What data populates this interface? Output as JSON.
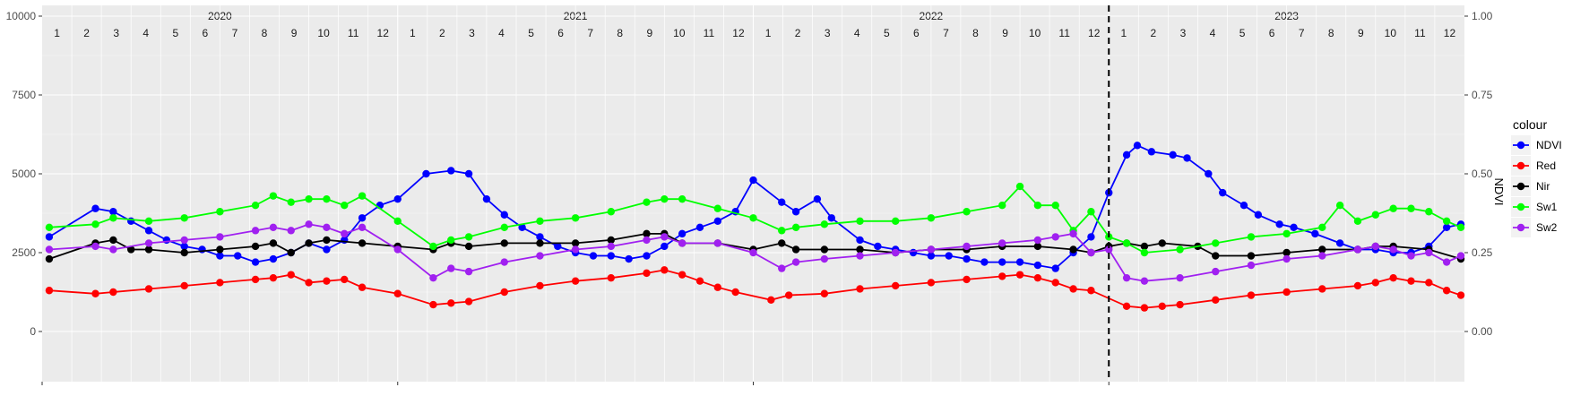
{
  "chart_data": {
    "type": "line",
    "title": "",
    "xlabel": "",
    "ylabel": "",
    "y2label": "NDVI",
    "ylim": [
      0,
      10000
    ],
    "y2lim": [
      0,
      1
    ],
    "y_ticks": [
      0,
      2500,
      5000,
      7500,
      10000
    ],
    "y_tick_labels": [
      "0",
      "2500",
      "5000",
      "7500",
      "10000"
    ],
    "y2_ticks": [
      0,
      0.25,
      0.5,
      0.75,
      1
    ],
    "y2_tick_labels": [
      "0.00",
      "0.25",
      "0.50",
      "0.75",
      "1.00"
    ],
    "years": [
      "2020",
      "2021",
      "2022",
      "2023"
    ],
    "month_labels": [
      "1",
      "2",
      "3",
      "4",
      "5",
      "6",
      "7",
      "8",
      "9",
      "10",
      "11",
      "12"
    ],
    "vline_date": "2023-01-01",
    "grid": true,
    "legend": {
      "title": "colour",
      "position": "right"
    },
    "x_unit": "decimal year",
    "series": [
      {
        "name": "NDVI",
        "color": "#0000ff",
        "axis": "secondary",
        "x": [
          2020.02,
          2020.15,
          2020.2,
          2020.25,
          2020.3,
          2020.35,
          2020.4,
          2020.45,
          2020.5,
          2020.55,
          2020.6,
          2020.65,
          2020.7,
          2020.75,
          2020.8,
          2020.85,
          2020.9,
          2020.95,
          2021.0,
          2021.08,
          2021.15,
          2021.2,
          2021.25,
          2021.3,
          2021.35,
          2021.4,
          2021.45,
          2021.5,
          2021.55,
          2021.6,
          2021.65,
          2021.7,
          2021.75,
          2021.8,
          2021.85,
          2021.9,
          2021.95,
          2022.0,
          2022.08,
          2022.12,
          2022.18,
          2022.22,
          2022.3,
          2022.35,
          2022.4,
          2022.45,
          2022.5,
          2022.55,
          2022.6,
          2022.65,
          2022.7,
          2022.75,
          2022.8,
          2022.85,
          2022.9,
          2022.95,
          2023.0,
          2023.05,
          2023.08,
          2023.12,
          2023.18,
          2023.22,
          2023.28,
          2023.32,
          2023.38,
          2023.42,
          2023.48,
          2023.52,
          2023.58,
          2023.65,
          2023.7,
          2023.75,
          2023.8,
          2023.85,
          2023.9,
          2023.95,
          2023.99
        ],
        "y": [
          0.3,
          0.39,
          0.38,
          0.35,
          0.32,
          0.29,
          0.27,
          0.26,
          0.24,
          0.24,
          0.22,
          0.23,
          0.25,
          0.28,
          0.26,
          0.29,
          0.36,
          0.4,
          0.42,
          0.5,
          0.51,
          0.5,
          0.42,
          0.37,
          0.33,
          0.3,
          0.27,
          0.25,
          0.24,
          0.24,
          0.23,
          0.24,
          0.27,
          0.31,
          0.33,
          0.35,
          0.38,
          0.48,
          0.41,
          0.38,
          0.42,
          0.36,
          0.29,
          0.27,
          0.26,
          0.25,
          0.24,
          0.24,
          0.23,
          0.22,
          0.22,
          0.22,
          0.21,
          0.2,
          0.25,
          0.3,
          0.44,
          0.56,
          0.59,
          0.57,
          0.56,
          0.55,
          0.5,
          0.44,
          0.4,
          0.37,
          0.34,
          0.33,
          0.31,
          0.28,
          0.26,
          0.26,
          0.25,
          0.25,
          0.27,
          0.33,
          0.34
        ]
      },
      {
        "name": "Red",
        "color": "#ff0000",
        "axis": "primary",
        "x": [
          2020.02,
          2020.15,
          2020.2,
          2020.3,
          2020.4,
          2020.5,
          2020.6,
          2020.65,
          2020.7,
          2020.75,
          2020.8,
          2020.85,
          2020.9,
          2021.0,
          2021.1,
          2021.15,
          2021.2,
          2021.3,
          2021.4,
          2021.5,
          2021.6,
          2021.7,
          2021.75,
          2021.8,
          2021.85,
          2021.9,
          2021.95,
          2022.05,
          2022.1,
          2022.2,
          2022.3,
          2022.4,
          2022.5,
          2022.6,
          2022.7,
          2022.75,
          2022.8,
          2022.85,
          2022.9,
          2022.95,
          2023.05,
          2023.1,
          2023.15,
          2023.2,
          2023.3,
          2023.4,
          2023.5,
          2023.6,
          2023.7,
          2023.75,
          2023.8,
          2023.85,
          2023.9,
          2023.95,
          2023.99
        ],
        "y": [
          1300,
          1200,
          1250,
          1350,
          1450,
          1550,
          1650,
          1700,
          1800,
          1550,
          1600,
          1650,
          1400,
          1200,
          850,
          900,
          950,
          1250,
          1450,
          1600,
          1700,
          1850,
          1950,
          1800,
          1600,
          1400,
          1250,
          1000,
          1150,
          1200,
          1350,
          1450,
          1550,
          1650,
          1750,
          1800,
          1700,
          1550,
          1350,
          1300,
          800,
          750,
          800,
          850,
          1000,
          1150,
          1250,
          1350,
          1450,
          1550,
          1700,
          1600,
          1550,
          1300,
          1150
        ]
      },
      {
        "name": "Nir",
        "color": "#000000",
        "axis": "primary",
        "x": [
          2020.02,
          2020.15,
          2020.2,
          2020.25,
          2020.3,
          2020.4,
          2020.5,
          2020.6,
          2020.65,
          2020.7,
          2020.75,
          2020.8,
          2020.9,
          2021.0,
          2021.1,
          2021.15,
          2021.2,
          2021.3,
          2021.4,
          2021.5,
          2021.6,
          2021.7,
          2021.75,
          2021.8,
          2021.9,
          2022.0,
          2022.08,
          2022.12,
          2022.2,
          2022.3,
          2022.4,
          2022.5,
          2022.6,
          2022.7,
          2022.8,
          2022.9,
          2022.95,
          2023.0,
          2023.05,
          2023.1,
          2023.15,
          2023.25,
          2023.3,
          2023.4,
          2023.5,
          2023.6,
          2023.7,
          2023.75,
          2023.8,
          2023.9,
          2023.99
        ],
        "y": [
          2300,
          2800,
          2900,
          2600,
          2600,
          2500,
          2600,
          2700,
          2800,
          2500,
          2800,
          2900,
          2800,
          2700,
          2600,
          2800,
          2700,
          2800,
          2800,
          2800,
          2900,
          3100,
          3100,
          2800,
          2800,
          2600,
          2800,
          2600,
          2600,
          2600,
          2500,
          2600,
          2600,
          2700,
          2700,
          2600,
          2500,
          2700,
          2800,
          2700,
          2800,
          2700,
          2400,
          2400,
          2500,
          2600,
          2600,
          2700,
          2700,
          2600,
          2300
        ]
      },
      {
        "name": "Sw1",
        "color": "#00ff00",
        "axis": "primary",
        "x": [
          2020.02,
          2020.15,
          2020.2,
          2020.3,
          2020.4,
          2020.5,
          2020.6,
          2020.65,
          2020.7,
          2020.75,
          2020.8,
          2020.85,
          2020.9,
          2021.0,
          2021.1,
          2021.15,
          2021.2,
          2021.3,
          2021.4,
          2021.5,
          2021.6,
          2021.7,
          2021.75,
          2021.8,
          2021.9,
          2022.0,
          2022.08,
          2022.12,
          2022.2,
          2022.3,
          2022.4,
          2022.5,
          2022.6,
          2022.7,
          2022.75,
          2022.8,
          2022.85,
          2022.9,
          2022.95,
          2023.0,
          2023.05,
          2023.1,
          2023.2,
          2023.3,
          2023.4,
          2023.5,
          2023.6,
          2023.65,
          2023.7,
          2023.75,
          2023.8,
          2023.85,
          2023.9,
          2023.95,
          2023.99
        ],
        "y": [
          3300,
          3400,
          3600,
          3500,
          3600,
          3800,
          4000,
          4300,
          4100,
          4200,
          4200,
          4000,
          4300,
          3500,
          2700,
          2900,
          3000,
          3300,
          3500,
          3600,
          3800,
          4100,
          4200,
          4200,
          3900,
          3600,
          3200,
          3300,
          3400,
          3500,
          3500,
          3600,
          3800,
          4000,
          4600,
          4000,
          4000,
          3200,
          3800,
          3000,
          2800,
          2500,
          2600,
          2800,
          3000,
          3100,
          3300,
          4000,
          3500,
          3700,
          3900,
          3900,
          3800,
          3500,
          3300
        ]
      },
      {
        "name": "Sw2",
        "color": "#a020f0",
        "axis": "primary",
        "x": [
          2020.02,
          2020.15,
          2020.2,
          2020.3,
          2020.4,
          2020.5,
          2020.6,
          2020.65,
          2020.7,
          2020.75,
          2020.8,
          2020.85,
          2020.9,
          2021.0,
          2021.1,
          2021.15,
          2021.2,
          2021.3,
          2021.4,
          2021.5,
          2021.6,
          2021.7,
          2021.75,
          2021.8,
          2021.9,
          2022.0,
          2022.08,
          2022.12,
          2022.2,
          2022.3,
          2022.4,
          2022.5,
          2022.6,
          2022.7,
          2022.8,
          2022.85,
          2022.9,
          2022.95,
          2023.0,
          2023.05,
          2023.1,
          2023.2,
          2023.3,
          2023.4,
          2023.5,
          2023.6,
          2023.7,
          2023.75,
          2023.8,
          2023.85,
          2023.9,
          2023.95,
          2023.99
        ],
        "y": [
          2600,
          2700,
          2600,
          2800,
          2900,
          3000,
          3200,
          3300,
          3200,
          3400,
          3300,
          3100,
          3300,
          2600,
          1700,
          2000,
          1900,
          2200,
          2400,
          2600,
          2700,
          2900,
          3000,
          2800,
          2800,
          2500,
          2000,
          2200,
          2300,
          2400,
          2500,
          2600,
          2700,
          2800,
          2900,
          3000,
          3100,
          2500,
          2600,
          1700,
          1600,
          1700,
          1900,
          2100,
          2300,
          2400,
          2600,
          2700,
          2600,
          2400,
          2500,
          2200,
          2400
        ]
      }
    ]
  }
}
